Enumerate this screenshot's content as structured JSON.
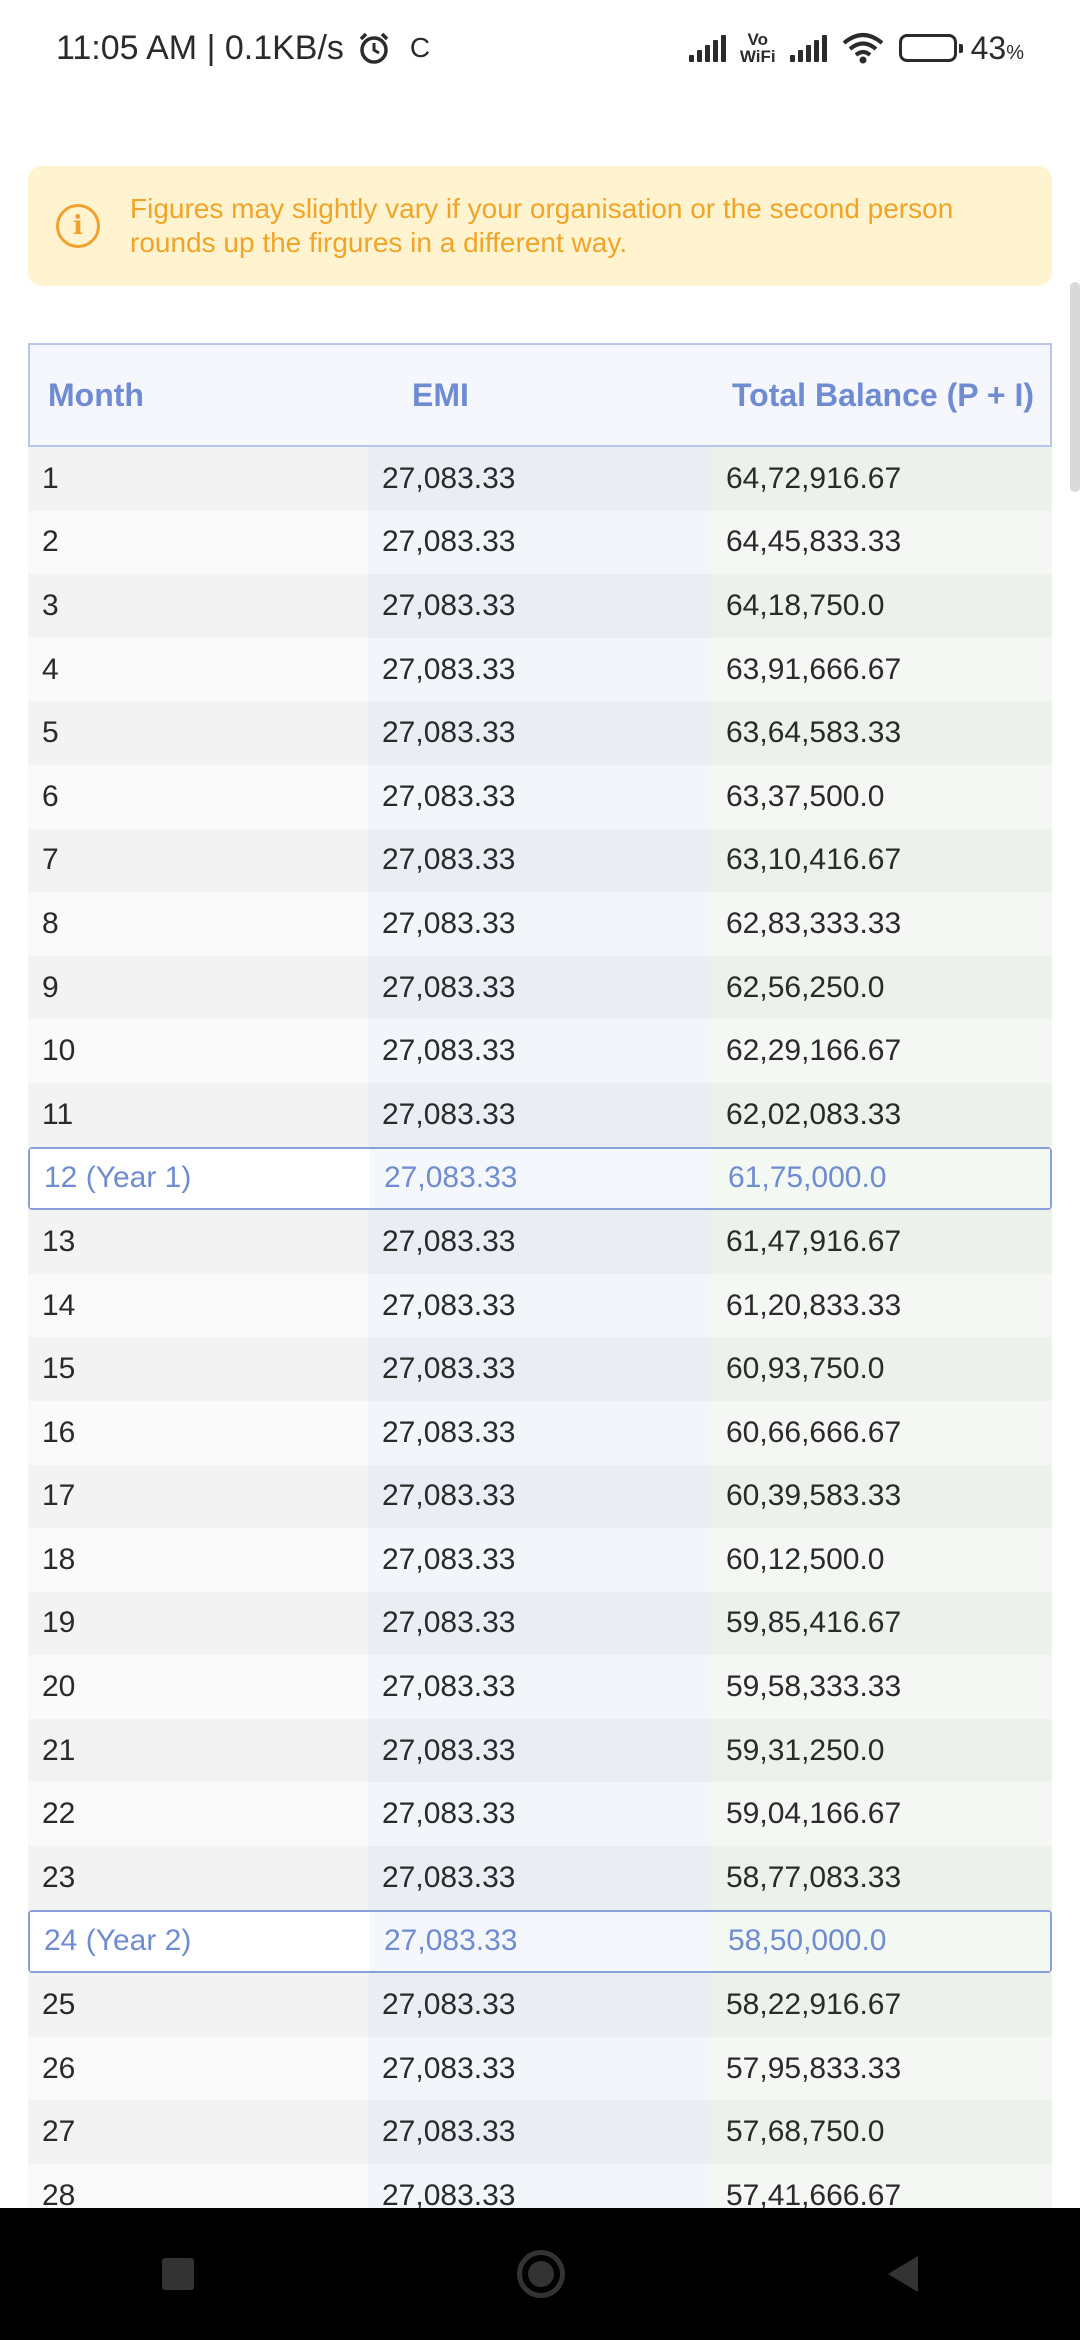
{
  "status_bar": {
    "time": "11:05 AM | 0.1KB/s",
    "alarm_icon": "alarm-clock-icon",
    "sync_glyph": "C",
    "vowifi_line1": "Vo",
    "vowifi_line2": "WiFi",
    "battery_percent": "43",
    "battery_suffix": "%",
    "battery_level": 0.43
  },
  "notice": {
    "icon": "info-icon",
    "color": "#f0a428",
    "text": "Figures may slightly vary if your organisation or the second person rounds up the firgures in a different way."
  },
  "table": {
    "headers": {
      "month": "Month",
      "emi": "EMI",
      "balance": "Total Balance (P + I)"
    },
    "rows": [
      {
        "month": "1",
        "emi": "27,083.33",
        "balance": "64,72,916.67"
      },
      {
        "month": "2",
        "emi": "27,083.33",
        "balance": "64,45,833.33"
      },
      {
        "month": "3",
        "emi": "27,083.33",
        "balance": "64,18,750.0"
      },
      {
        "month": "4",
        "emi": "27,083.33",
        "balance": "63,91,666.67"
      },
      {
        "month": "5",
        "emi": "27,083.33",
        "balance": "63,64,583.33"
      },
      {
        "month": "6",
        "emi": "27,083.33",
        "balance": "63,37,500.0"
      },
      {
        "month": "7",
        "emi": "27,083.33",
        "balance": "63,10,416.67"
      },
      {
        "month": "8",
        "emi": "27,083.33",
        "balance": "62,83,333.33"
      },
      {
        "month": "9",
        "emi": "27,083.33",
        "balance": "62,56,250.0"
      },
      {
        "month": "10",
        "emi": "27,083.33",
        "balance": "62,29,166.67"
      },
      {
        "month": "11",
        "emi": "27,083.33",
        "balance": "62,02,083.33"
      },
      {
        "month": "12 (Year 1)",
        "emi": "27,083.33",
        "balance": "61,75,000.0",
        "year_end": true
      },
      {
        "month": "13",
        "emi": "27,083.33",
        "balance": "61,47,916.67"
      },
      {
        "month": "14",
        "emi": "27,083.33",
        "balance": "61,20,833.33"
      },
      {
        "month": "15",
        "emi": "27,083.33",
        "balance": "60,93,750.0"
      },
      {
        "month": "16",
        "emi": "27,083.33",
        "balance": "60,66,666.67"
      },
      {
        "month": "17",
        "emi": "27,083.33",
        "balance": "60,39,583.33"
      },
      {
        "month": "18",
        "emi": "27,083.33",
        "balance": "60,12,500.0"
      },
      {
        "month": "19",
        "emi": "27,083.33",
        "balance": "59,85,416.67"
      },
      {
        "month": "20",
        "emi": "27,083.33",
        "balance": "59,58,333.33"
      },
      {
        "month": "21",
        "emi": "27,083.33",
        "balance": "59,31,250.0"
      },
      {
        "month": "22",
        "emi": "27,083.33",
        "balance": "59,04,166.67"
      },
      {
        "month": "23",
        "emi": "27,083.33",
        "balance": "58,77,083.33"
      },
      {
        "month": "24 (Year 2)",
        "emi": "27,083.33",
        "balance": "58,50,000.0",
        "year_end": true
      },
      {
        "month": "25",
        "emi": "27,083.33",
        "balance": "58,22,916.67"
      },
      {
        "month": "26",
        "emi": "27,083.33",
        "balance": "57,95,833.33"
      },
      {
        "month": "27",
        "emi": "27,083.33",
        "balance": "57,68,750.0"
      },
      {
        "month": "28",
        "emi": "27,083.33",
        "balance": "57,41,666.67"
      }
    ]
  },
  "nav_bar": {
    "recents_icon": "square-recents-icon",
    "home_icon": "circle-home-icon",
    "back_icon": "triangle-back-icon"
  }
}
